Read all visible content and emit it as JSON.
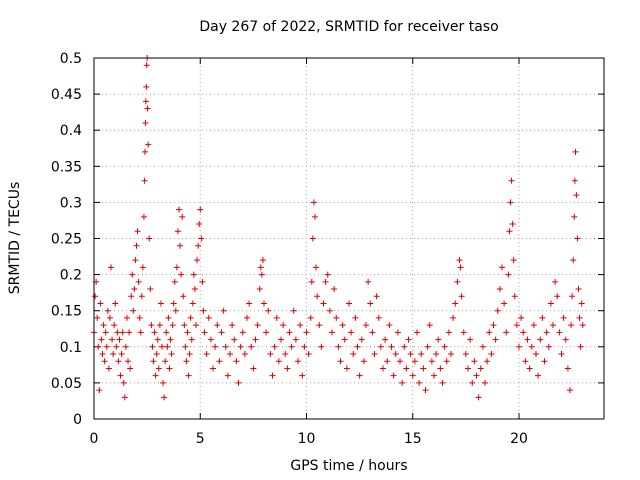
{
  "chart_data": {
    "type": "scatter",
    "title": "Day 267 of 2022, SRMTID for receiver taso",
    "xlabel": "GPS time / hours",
    "ylabel": "SRMTID / TECUs",
    "xlim": [
      0,
      24
    ],
    "ylim": [
      0,
      0.5
    ],
    "xticks": [
      0,
      5,
      10,
      15,
      20
    ],
    "xtick_labels": [
      "0",
      "5",
      "10",
      "15",
      "20"
    ],
    "yticks": [
      0,
      0.05,
      0.1,
      0.15,
      0.2,
      0.25,
      0.3,
      0.35,
      0.4,
      0.45,
      0.5
    ],
    "ytick_labels": [
      "0",
      "0.05",
      "0.1",
      "0.15",
      "0.2",
      "0.25",
      "0.3",
      "0.35",
      "0.4",
      "0.45",
      "0.5"
    ],
    "grid": true,
    "marker": "plus",
    "series_color": "#e00000",
    "series": [
      {
        "name": "SRMTID",
        "points": [
          [
            0.0,
            0.12
          ],
          [
            0.05,
            0.17
          ],
          [
            0.1,
            0.19
          ],
          [
            0.15,
            0.14
          ],
          [
            0.2,
            0.1
          ],
          [
            0.25,
            0.04
          ],
          [
            0.3,
            0.16
          ],
          [
            0.35,
            0.11
          ],
          [
            0.4,
            0.09
          ],
          [
            0.45,
            0.13
          ],
          [
            0.5,
            0.08
          ],
          [
            0.55,
            0.12
          ],
          [
            0.6,
            0.1
          ],
          [
            0.65,
            0.15
          ],
          [
            0.7,
            0.07
          ],
          [
            0.75,
            0.14
          ],
          [
            0.8,
            0.21
          ],
          [
            0.85,
            0.11
          ],
          [
            0.9,
            0.09
          ],
          [
            0.95,
            0.13
          ],
          [
            1.0,
            0.16
          ],
          [
            1.05,
            0.1
          ],
          [
            1.1,
            0.12
          ],
          [
            1.15,
            0.08
          ],
          [
            1.2,
            0.11
          ],
          [
            1.25,
            0.06
          ],
          [
            1.3,
            0.09
          ],
          [
            1.35,
            0.12
          ],
          [
            1.4,
            0.05
          ],
          [
            1.45,
            0.03
          ],
          [
            1.5,
            0.1
          ],
          [
            1.55,
            0.14
          ],
          [
            1.6,
            0.08
          ],
          [
            1.65,
            0.12
          ],
          [
            1.7,
            0.07
          ],
          [
            1.75,
            0.17
          ],
          [
            1.8,
            0.2
          ],
          [
            1.85,
            0.15
          ],
          [
            1.9,
            0.18
          ],
          [
            1.95,
            0.22
          ],
          [
            2.0,
            0.24
          ],
          [
            2.05,
            0.26
          ],
          [
            2.1,
            0.19
          ],
          [
            2.15,
            0.14
          ],
          [
            2.2,
            0.12
          ],
          [
            2.25,
            0.17
          ],
          [
            2.3,
            0.21
          ],
          [
            2.35,
            0.28
          ],
          [
            2.38,
            0.33
          ],
          [
            2.4,
            0.37
          ],
          [
            2.42,
            0.41
          ],
          [
            2.44,
            0.44
          ],
          [
            2.46,
            0.46
          ],
          [
            2.48,
            0.49
          ],
          [
            2.5,
            0.5
          ],
          [
            2.52,
            0.43
          ],
          [
            2.55,
            0.38
          ],
          [
            2.6,
            0.25
          ],
          [
            2.65,
            0.18
          ],
          [
            2.7,
            0.13
          ],
          [
            2.75,
            0.1
          ],
          [
            2.8,
            0.08
          ],
          [
            2.85,
            0.12
          ],
          [
            2.9,
            0.06
          ],
          [
            2.95,
            0.09
          ],
          [
            3.0,
            0.11
          ],
          [
            3.05,
            0.07
          ],
          [
            3.1,
            0.13
          ],
          [
            3.15,
            0.16
          ],
          [
            3.2,
            0.1
          ],
          [
            3.25,
            0.05
          ],
          [
            3.3,
            0.03
          ],
          [
            3.35,
            0.08
          ],
          [
            3.4,
            0.12
          ],
          [
            3.45,
            0.1
          ],
          [
            3.5,
            0.14
          ],
          [
            3.55,
            0.07
          ],
          [
            3.6,
            0.11
          ],
          [
            3.65,
            0.09
          ],
          [
            3.7,
            0.13
          ],
          [
            3.75,
            0.16
          ],
          [
            3.8,
            0.19
          ],
          [
            3.85,
            0.15
          ],
          [
            3.9,
            0.21
          ],
          [
            3.95,
            0.26
          ],
          [
            4.0,
            0.29
          ],
          [
            4.05,
            0.24
          ],
          [
            4.1,
            0.2
          ],
          [
            4.15,
            0.28
          ],
          [
            4.2,
            0.17
          ],
          [
            4.25,
            0.13
          ],
          [
            4.3,
            0.1
          ],
          [
            4.35,
            0.08
          ],
          [
            4.4,
            0.12
          ],
          [
            4.45,
            0.06
          ],
          [
            4.5,
            0.09
          ],
          [
            4.55,
            0.14
          ],
          [
            4.6,
            0.11
          ],
          [
            4.65,
            0.16
          ],
          [
            4.7,
            0.2
          ],
          [
            4.75,
            0.18
          ],
          [
            4.8,
            0.13
          ],
          [
            4.85,
            0.22
          ],
          [
            4.9,
            0.24
          ],
          [
            4.95,
            0.27
          ],
          [
            5.0,
            0.29
          ],
          [
            5.05,
            0.25
          ],
          [
            5.1,
            0.19
          ],
          [
            5.15,
            0.15
          ],
          [
            5.2,
            0.12
          ],
          [
            5.3,
            0.09
          ],
          [
            5.4,
            0.14
          ],
          [
            5.5,
            0.11
          ],
          [
            5.6,
            0.07
          ],
          [
            5.7,
            0.1
          ],
          [
            5.8,
            0.13
          ],
          [
            5.9,
            0.08
          ],
          [
            6.0,
            0.12
          ],
          [
            6.1,
            0.15
          ],
          [
            6.2,
            0.1
          ],
          [
            6.3,
            0.06
          ],
          [
            6.4,
            0.09
          ],
          [
            6.5,
            0.13
          ],
          [
            6.6,
            0.11
          ],
          [
            6.7,
            0.08
          ],
          [
            6.8,
            0.05
          ],
          [
            6.9,
            0.1
          ],
          [
            7.0,
            0.12
          ],
          [
            7.1,
            0.09
          ],
          [
            7.2,
            0.14
          ],
          [
            7.3,
            0.16
          ],
          [
            7.4,
            0.1
          ],
          [
            7.5,
            0.07
          ],
          [
            7.6,
            0.11
          ],
          [
            7.7,
            0.13
          ],
          [
            7.8,
            0.18
          ],
          [
            7.85,
            0.21
          ],
          [
            7.9,
            0.2
          ],
          [
            7.95,
            0.22
          ],
          [
            8.0,
            0.16
          ],
          [
            8.1,
            0.12
          ],
          [
            8.2,
            0.15
          ],
          [
            8.3,
            0.09
          ],
          [
            8.4,
            0.06
          ],
          [
            8.5,
            0.1
          ],
          [
            8.6,
            0.14
          ],
          [
            8.7,
            0.08
          ],
          [
            8.8,
            0.11
          ],
          [
            8.9,
            0.13
          ],
          [
            9.0,
            0.09
          ],
          [
            9.1,
            0.07
          ],
          [
            9.2,
            0.12
          ],
          [
            9.3,
            0.1
          ],
          [
            9.4,
            0.15
          ],
          [
            9.5,
            0.11
          ],
          [
            9.6,
            0.08
          ],
          [
            9.7,
            0.13
          ],
          [
            9.8,
            0.06
          ],
          [
            9.9,
            0.1
          ],
          [
            10.0,
            0.12
          ],
          [
            10.1,
            0.09
          ],
          [
            10.2,
            0.14
          ],
          [
            10.25,
            0.19
          ],
          [
            10.3,
            0.25
          ],
          [
            10.35,
            0.3
          ],
          [
            10.4,
            0.28
          ],
          [
            10.45,
            0.21
          ],
          [
            10.5,
            0.17
          ],
          [
            10.6,
            0.13
          ],
          [
            10.7,
            0.1
          ],
          [
            10.8,
            0.16
          ],
          [
            10.9,
            0.19
          ],
          [
            11.0,
            0.2
          ],
          [
            11.1,
            0.15
          ],
          [
            11.2,
            0.12
          ],
          [
            11.3,
            0.18
          ],
          [
            11.4,
            0.14
          ],
          [
            11.5,
            0.1
          ],
          [
            11.6,
            0.08
          ],
          [
            11.7,
            0.13
          ],
          [
            11.8,
            0.11
          ],
          [
            11.9,
            0.07
          ],
          [
            12.0,
            0.16
          ],
          [
            12.1,
            0.12
          ],
          [
            12.2,
            0.09
          ],
          [
            12.3,
            0.14
          ],
          [
            12.4,
            0.1
          ],
          [
            12.5,
            0.06
          ],
          [
            12.6,
            0.11
          ],
          [
            12.7,
            0.08
          ],
          [
            12.8,
            0.13
          ],
          [
            12.9,
            0.19
          ],
          [
            13.0,
            0.16
          ],
          [
            13.1,
            0.12
          ],
          [
            13.2,
            0.09
          ],
          [
            13.3,
            0.17
          ],
          [
            13.4,
            0.14
          ],
          [
            13.5,
            0.1
          ],
          [
            13.6,
            0.07
          ],
          [
            13.7,
            0.11
          ],
          [
            13.8,
            0.08
          ],
          [
            13.9,
            0.13
          ],
          [
            14.0,
            0.1
          ],
          [
            14.1,
            0.06
          ],
          [
            14.2,
            0.09
          ],
          [
            14.3,
            0.12
          ],
          [
            14.4,
            0.08
          ],
          [
            14.5,
            0.05
          ],
          [
            14.6,
            0.1
          ],
          [
            14.7,
            0.07
          ],
          [
            14.8,
            0.11
          ],
          [
            14.9,
            0.09
          ],
          [
            15.0,
            0.06
          ],
          [
            15.1,
            0.08
          ],
          [
            15.2,
            0.12
          ],
          [
            15.3,
            0.05
          ],
          [
            15.4,
            0.09
          ],
          [
            15.5,
            0.07
          ],
          [
            15.6,
            0.04
          ],
          [
            15.7,
            0.1
          ],
          [
            15.8,
            0.13
          ],
          [
            15.9,
            0.08
          ],
          [
            16.0,
            0.06
          ],
          [
            16.1,
            0.09
          ],
          [
            16.2,
            0.11
          ],
          [
            16.3,
            0.07
          ],
          [
            16.4,
            0.05
          ],
          [
            16.5,
            0.1
          ],
          [
            16.6,
            0.08
          ],
          [
            16.7,
            0.12
          ],
          [
            16.8,
            0.09
          ],
          [
            16.9,
            0.14
          ],
          [
            17.0,
            0.16
          ],
          [
            17.1,
            0.19
          ],
          [
            17.2,
            0.22
          ],
          [
            17.25,
            0.21
          ],
          [
            17.3,
            0.17
          ],
          [
            17.4,
            0.12
          ],
          [
            17.5,
            0.09
          ],
          [
            17.6,
            0.07
          ],
          [
            17.7,
            0.11
          ],
          [
            17.8,
            0.05
          ],
          [
            17.9,
            0.08
          ],
          [
            18.0,
            0.06
          ],
          [
            18.1,
            0.03
          ],
          [
            18.2,
            0.07
          ],
          [
            18.3,
            0.1
          ],
          [
            18.4,
            0.05
          ],
          [
            18.5,
            0.08
          ],
          [
            18.6,
            0.12
          ],
          [
            18.7,
            0.09
          ],
          [
            18.8,
            0.13
          ],
          [
            18.9,
            0.11
          ],
          [
            19.0,
            0.15
          ],
          [
            19.1,
            0.18
          ],
          [
            19.2,
            0.21
          ],
          [
            19.3,
            0.16
          ],
          [
            19.4,
            0.12
          ],
          [
            19.5,
            0.2
          ],
          [
            19.55,
            0.26
          ],
          [
            19.6,
            0.3
          ],
          [
            19.65,
            0.33
          ],
          [
            19.7,
            0.27
          ],
          [
            19.75,
            0.22
          ],
          [
            19.8,
            0.17
          ],
          [
            19.9,
            0.13
          ],
          [
            20.0,
            0.1
          ],
          [
            20.1,
            0.14
          ],
          [
            20.2,
            0.12
          ],
          [
            20.3,
            0.08
          ],
          [
            20.4,
            0.11
          ],
          [
            20.5,
            0.07
          ],
          [
            20.6,
            0.1
          ],
          [
            20.7,
            0.13
          ],
          [
            20.8,
            0.09
          ],
          [
            20.9,
            0.06
          ],
          [
            21.0,
            0.11
          ],
          [
            21.1,
            0.14
          ],
          [
            21.2,
            0.08
          ],
          [
            21.3,
            0.12
          ],
          [
            21.4,
            0.1
          ],
          [
            21.5,
            0.16
          ],
          [
            21.6,
            0.13
          ],
          [
            21.7,
            0.19
          ],
          [
            21.8,
            0.17
          ],
          [
            21.9,
            0.12
          ],
          [
            22.0,
            0.09
          ],
          [
            22.1,
            0.14
          ],
          [
            22.2,
            0.11
          ],
          [
            22.3,
            0.07
          ],
          [
            22.4,
            0.04
          ],
          [
            22.45,
            0.13
          ],
          [
            22.5,
            0.17
          ],
          [
            22.55,
            0.22
          ],
          [
            22.6,
            0.28
          ],
          [
            22.63,
            0.33
          ],
          [
            22.66,
            0.37
          ],
          [
            22.7,
            0.31
          ],
          [
            22.75,
            0.25
          ],
          [
            22.8,
            0.18
          ],
          [
            22.85,
            0.14
          ],
          [
            22.9,
            0.1
          ],
          [
            22.95,
            0.16
          ],
          [
            23.0,
            0.13
          ]
        ]
      }
    ]
  }
}
